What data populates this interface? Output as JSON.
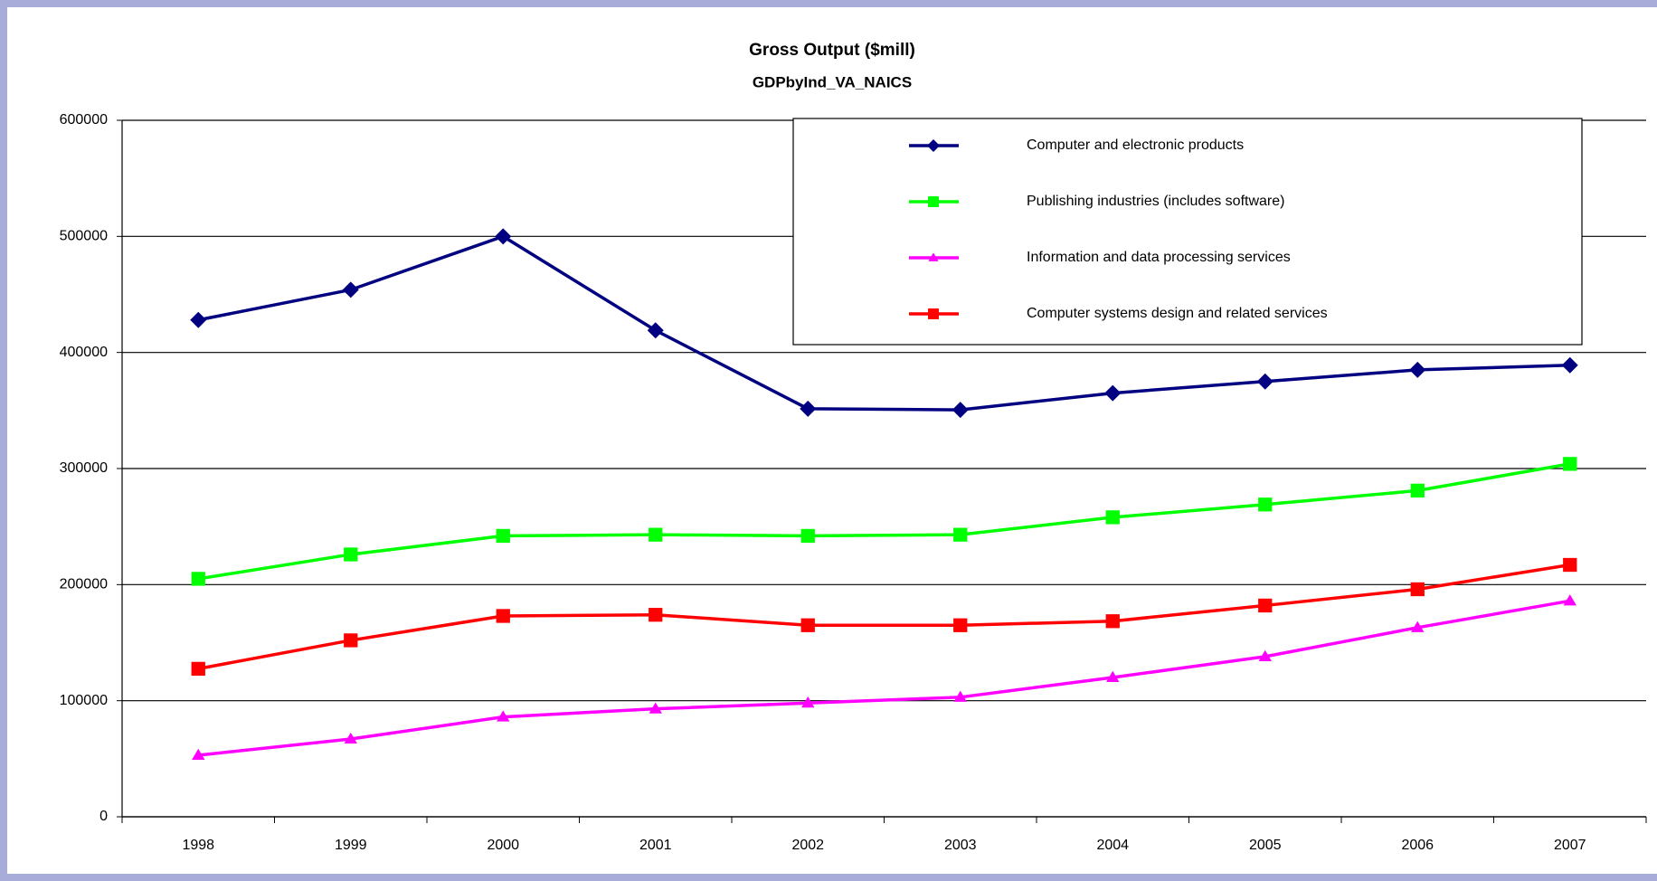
{
  "chart_data": {
    "type": "line",
    "title": "Gross Output ($mill)",
    "subtitle": "GDPbyInd_VA_NAICS",
    "categories": [
      "1998",
      "1999",
      "2000",
      "2001",
      "2002",
      "2003",
      "2004",
      "2005",
      "2006",
      "2007"
    ],
    "series": [
      {
        "name": "Computer and electronic products",
        "color": "#000080",
        "marker": "diamond",
        "values": [
          428000,
          454000,
          500000,
          419000,
          351500,
          350600,
          365000,
          375000,
          385000,
          389000
        ]
      },
      {
        "name": "Publishing industries (includes software)",
        "color": "#00ff00",
        "marker": "square",
        "values": [
          205000,
          226000,
          242000,
          243000,
          242000,
          243000,
          258000,
          269000,
          281000,
          304000
        ]
      },
      {
        "name": "Information and data processing services",
        "color": "#ff00ff",
        "marker": "triangle",
        "values": [
          53000,
          67000,
          86000,
          93000,
          98000,
          103000,
          120000,
          138000,
          163000,
          186000
        ]
      },
      {
        "name": "Computer systems design and related services",
        "color": "#ff0000",
        "marker": "square",
        "values": [
          127500,
          152000,
          173000,
          174000,
          165000,
          165000,
          168500,
          182000,
          196000,
          217000
        ]
      }
    ],
    "ylim": [
      0,
      600000
    ],
    "yticks": [
      0,
      100000,
      200000,
      300000,
      400000,
      500000,
      600000
    ],
    "grid": true,
    "legend": "top-right"
  }
}
